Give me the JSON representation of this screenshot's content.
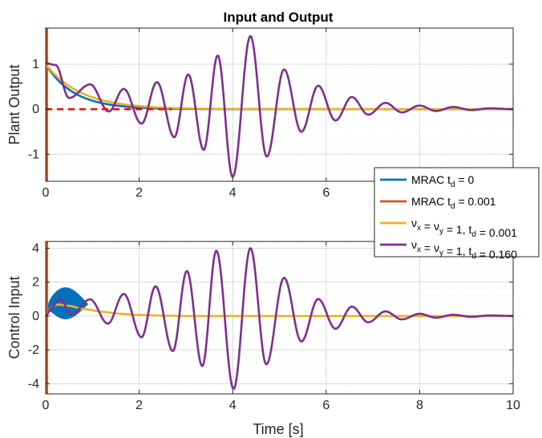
{
  "figure": {
    "title": "Input and Output",
    "xlabel": "Time [s]"
  },
  "legend": {
    "entries": [
      {
        "prefix": "MRAC t",
        "sub": "d",
        "suffix": " = 0",
        "color": "#0072BD"
      },
      {
        "prefix": "MRAC t",
        "sub": "d",
        "suffix": " = 0.001",
        "color": "#D95319"
      },
      {
        "text": "ν_x = ν_y = 1, t_d = 0.001",
        "color": "#EDB120"
      },
      {
        "text": "ν_x = ν_y = 1, t_d = 0.160",
        "color": "#7E2F8E"
      }
    ]
  },
  "chart_data": [
    {
      "type": "line",
      "title": "Input and Output",
      "ylabel": "Plant Output",
      "xlabel": "",
      "xlim": [
        0,
        10
      ],
      "ylim": [
        -1.6,
        1.8
      ],
      "xticks": [
        0,
        2,
        4,
        6,
        8,
        10
      ],
      "yticks": [
        -1,
        0,
        1
      ],
      "grid": true,
      "reference": {
        "name": "reference",
        "value": 0,
        "x_range": [
          0,
          2.7
        ],
        "color": "#FF0000",
        "style": "dashed"
      },
      "series": [
        {
          "name": "MRAC t_d = 0",
          "color": "#0072BD",
          "model": "decay",
          "y0": 1.0,
          "tau": 0.6,
          "t_end": 10
        },
        {
          "name": "MRAC t_d = 0.001",
          "color": "#D95319",
          "model": "vertical",
          "x": 0,
          "y_range": [
            -1.6,
            1.8
          ]
        },
        {
          "name": "ν_x = ν_y = 1, t_d = 0.001",
          "color": "#EDB120",
          "model": "decay",
          "y0": 1.0,
          "tau": 0.75,
          "t_end": 10
        },
        {
          "name": "ν_x = ν_y = 1, t_d = 0.160",
          "color": "#7E2F8E",
          "model": "oscillation",
          "peaks": [
            [
              0,
              1.02
            ],
            [
              0.21,
              0.98
            ],
            [
              0.5,
              0.25
            ],
            [
              0.95,
              0.55
            ],
            [
              1.35,
              -0.05
            ],
            [
              1.67,
              0.45
            ],
            [
              2.05,
              -0.32
            ],
            [
              2.38,
              0.6
            ],
            [
              2.75,
              -0.62
            ],
            [
              3.05,
              0.77
            ],
            [
              3.38,
              -0.9
            ],
            [
              3.68,
              1.19
            ],
            [
              4.0,
              -1.5
            ],
            [
              4.38,
              1.62
            ],
            [
              4.73,
              -1.05
            ],
            [
              5.1,
              0.88
            ],
            [
              5.47,
              -0.5
            ],
            [
              5.83,
              0.52
            ],
            [
              6.2,
              -0.25
            ],
            [
              6.55,
              0.27
            ],
            [
              6.9,
              -0.12
            ],
            [
              7.27,
              0.14
            ],
            [
              7.62,
              -0.07
            ],
            [
              8.0,
              0.08
            ],
            [
              8.35,
              -0.04
            ],
            [
              8.72,
              0.05
            ],
            [
              9.1,
              -0.02
            ],
            [
              9.5,
              0.02
            ],
            [
              10.0,
              0.0
            ]
          ]
        }
      ]
    },
    {
      "type": "line",
      "title": "",
      "ylabel": "Control Input",
      "xlabel": "Time [s]",
      "xlim": [
        0,
        10
      ],
      "ylim": [
        -4.6,
        4.4
      ],
      "xticks": [
        0,
        2,
        4,
        6,
        8,
        10
      ],
      "yticks": [
        -4,
        -2,
        0,
        2,
        4
      ],
      "grid": true,
      "series": [
        {
          "name": "MRAC t_d = 0",
          "color": "#0072BD",
          "model": "band",
          "center": 0.7,
          "max_amp": 1.1,
          "t_end": 0.9
        },
        {
          "name": "MRAC t_d = 0.001",
          "color": "#D95319",
          "model": "vertical",
          "x": 0,
          "y_range": [
            -4.6,
            4.4
          ]
        },
        {
          "name": "ν_x = ν_y = 1, t_d = 0.001",
          "color": "#EDB120",
          "model": "curve",
          "points": [
            [
              0,
              0
            ],
            [
              0.1,
              0.45
            ],
            [
              0.25,
              0.68
            ],
            [
              0.5,
              0.6
            ],
            [
              0.8,
              0.42
            ],
            [
              1.2,
              0.25
            ],
            [
              1.6,
              0.13
            ],
            [
              2.0,
              0.06
            ],
            [
              2.5,
              0.02
            ],
            [
              3.0,
              0.0
            ],
            [
              10.0,
              0.0
            ]
          ]
        },
        {
          "name": "ν_x = ν_y = 1, t_d = 0.160",
          "color": "#7E2F8E",
          "model": "oscillation",
          "peaks": [
            [
              0,
              0
            ],
            [
              0.12,
              0.45
            ],
            [
              0.3,
              1.05
            ],
            [
              0.55,
              0.1
            ],
            [
              0.95,
              0.98
            ],
            [
              1.33,
              -0.45
            ],
            [
              1.67,
              1.3
            ],
            [
              2.05,
              -1.25
            ],
            [
              2.35,
              1.75
            ],
            [
              2.72,
              -2.07
            ],
            [
              3.02,
              2.65
            ],
            [
              3.35,
              -2.95
            ],
            [
              3.65,
              3.85
            ],
            [
              4.02,
              -4.3
            ],
            [
              4.38,
              4.0
            ],
            [
              4.72,
              -2.85
            ],
            [
              5.1,
              2.25
            ],
            [
              5.47,
              -1.5
            ],
            [
              5.83,
              1.0
            ],
            [
              6.2,
              -0.75
            ],
            [
              6.55,
              0.55
            ],
            [
              6.9,
              -0.37
            ],
            [
              7.27,
              0.27
            ],
            [
              7.62,
              -0.2
            ],
            [
              8.0,
              0.13
            ],
            [
              8.35,
              -0.1
            ],
            [
              8.72,
              0.07
            ],
            [
              9.1,
              -0.05
            ],
            [
              9.5,
              0.03
            ],
            [
              10.0,
              0.0
            ]
          ]
        }
      ]
    }
  ]
}
